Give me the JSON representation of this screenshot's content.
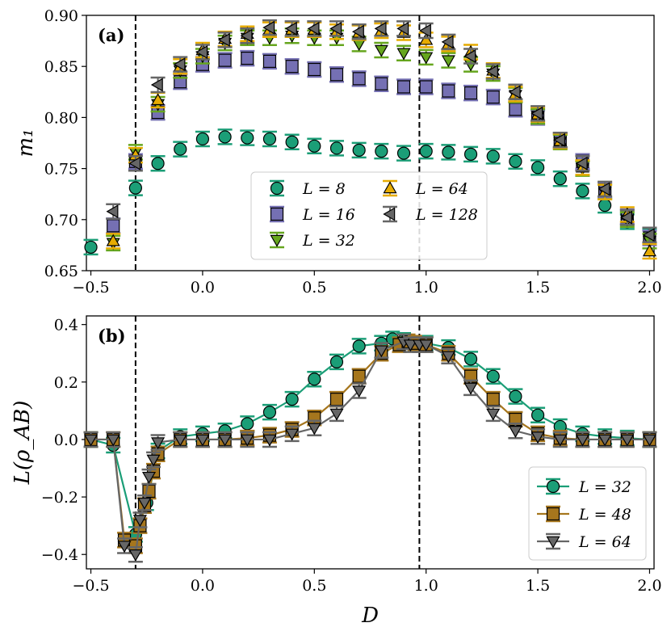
{
  "chart_data": [
    {
      "panel": "(a)",
      "type": "scatter",
      "xlabel": "D",
      "ylabel": "m₁",
      "xlim": [
        -0.52,
        2.02
      ],
      "ylim": [
        0.65,
        0.9
      ],
      "xticks": [
        -0.5,
        0.0,
        0.5,
        1.0,
        1.5,
        2.0
      ],
      "xtick_labels": [
        "−0.5",
        "0.0",
        "0.5",
        "1.0",
        "1.5",
        "2.0"
      ],
      "yticks": [
        0.65,
        0.7,
        0.75,
        0.8,
        0.85,
        0.9
      ],
      "ytick_labels": [
        "0.65",
        "0.70",
        "0.75",
        "0.80",
        "0.85",
        "0.90"
      ],
      "vlines": [
        -0.3,
        0.97
      ],
      "legend_position": "lower-center",
      "legend_columns": 2,
      "series": [
        {
          "name": "L = 8",
          "color": "#1b9e77",
          "marker": "circle",
          "x": [
            -0.5,
            -0.3,
            -0.2,
            -0.1,
            0.0,
            0.1,
            0.2,
            0.3,
            0.4,
            0.5,
            0.6,
            0.7,
            0.8,
            0.9,
            1.0,
            1.1,
            1.2,
            1.3,
            1.4,
            1.5,
            1.6,
            1.7,
            1.8,
            1.9,
            2.0
          ],
          "y": [
            0.673,
            0.731,
            0.755,
            0.769,
            0.779,
            0.781,
            0.78,
            0.779,
            0.776,
            0.772,
            0.77,
            0.768,
            0.767,
            0.765,
            0.767,
            0.766,
            0.764,
            0.762,
            0.757,
            0.751,
            0.74,
            0.728,
            0.714,
            0.698,
            0.684
          ]
        },
        {
          "name": "L = 16",
          "color": "#7570b3",
          "marker": "square",
          "x": [
            -0.4,
            -0.3,
            -0.2,
            -0.1,
            0.0,
            0.1,
            0.2,
            0.3,
            0.4,
            0.5,
            0.6,
            0.7,
            0.8,
            0.9,
            1.0,
            1.1,
            1.2,
            1.3,
            1.4,
            1.5,
            1.6,
            1.7,
            1.8,
            1.9,
            2.0
          ],
          "y": [
            0.694,
            0.757,
            0.805,
            0.835,
            0.852,
            0.856,
            0.858,
            0.855,
            0.85,
            0.847,
            0.842,
            0.838,
            0.833,
            0.83,
            0.83,
            0.826,
            0.824,
            0.82,
            0.808,
            0.8,
            0.778,
            0.757,
            0.729,
            0.703,
            0.682
          ]
        },
        {
          "name": "L = 32",
          "color": "#66a61e",
          "marker": "triangle-down",
          "x": [
            -0.4,
            -0.3,
            -0.2,
            -0.1,
            0.0,
            0.1,
            0.2,
            0.3,
            0.4,
            0.5,
            0.6,
            0.7,
            0.8,
            0.9,
            1.0,
            1.1,
            1.2,
            1.3,
            1.4,
            1.5,
            1.6,
            1.7,
            1.8,
            1.9,
            2.0
          ],
          "y": [
            0.677,
            0.766,
            0.813,
            0.846,
            0.86,
            0.873,
            0.878,
            0.878,
            0.88,
            0.878,
            0.878,
            0.872,
            0.866,
            0.863,
            0.859,
            0.856,
            0.852,
            0.843,
            0.822,
            0.801,
            0.776,
            0.75,
            0.727,
            0.7,
            0.679
          ]
        },
        {
          "name": "L = 64",
          "color": "#e6ab02",
          "marker": "triangle-up",
          "x": [
            -0.4,
            -0.3,
            -0.2,
            -0.1,
            0.0,
            0.1,
            0.2,
            0.3,
            0.4,
            0.5,
            0.6,
            0.7,
            0.8,
            0.9,
            1.0,
            1.1,
            1.2,
            1.3,
            1.4,
            1.5,
            1.6,
            1.7,
            1.8,
            1.9,
            2.0
          ],
          "y": [
            0.679,
            0.763,
            0.817,
            0.85,
            0.866,
            0.877,
            0.882,
            0.886,
            0.886,
            0.886,
            0.884,
            0.883,
            0.885,
            0.883,
            0.876,
            0.872,
            0.864,
            0.846,
            0.823,
            0.803,
            0.777,
            0.751,
            0.727,
            0.705,
            0.669
          ]
        },
        {
          "name": "L = 128",
          "color": "#666666",
          "marker": "triangle-left",
          "x": [
            -0.4,
            -0.3,
            -0.2,
            -0.1,
            0.0,
            0.1,
            0.2,
            0.3,
            0.4,
            0.5,
            0.6,
            0.7,
            0.8,
            0.9,
            1.0,
            1.1,
            1.2,
            1.3,
            1.4,
            1.5,
            1.6,
            1.7,
            1.8,
            1.9,
            2.0
          ],
          "y": [
            0.708,
            0.755,
            0.832,
            0.852,
            0.864,
            0.876,
            0.88,
            0.888,
            0.887,
            0.887,
            0.887,
            0.884,
            0.887,
            0.887,
            0.885,
            0.874,
            0.86,
            0.845,
            0.825,
            0.804,
            0.778,
            0.755,
            0.73,
            0.702,
            0.685
          ]
        }
      ]
    },
    {
      "panel": "(b)",
      "type": "line",
      "xlabel": "D",
      "ylabel": "L(ρ_AB)",
      "xlim": [
        -0.52,
        2.02
      ],
      "ylim": [
        -0.45,
        0.43
      ],
      "xticks": [
        -0.5,
        0.0,
        0.5,
        1.0,
        1.5,
        2.0
      ],
      "xtick_labels": [
        "−0.5",
        "0.0",
        "0.5",
        "1.0",
        "1.5",
        "2.0"
      ],
      "yticks": [
        -0.4,
        -0.2,
        0.0,
        0.2,
        0.4
      ],
      "ytick_labels": [
        "−0.4",
        "−0.2",
        "0.0",
        "0.2",
        "0.4"
      ],
      "vlines": [
        -0.3,
        0.97
      ],
      "legend_position": "lower-right",
      "series": [
        {
          "name": "L = 32",
          "color": "#1b9e77",
          "marker": "circle",
          "x": [
            -0.5,
            -0.4,
            -0.3,
            -0.25,
            -0.2,
            -0.1,
            0.0,
            0.1,
            0.2,
            0.3,
            0.4,
            0.5,
            0.6,
            0.7,
            0.8,
            0.85,
            0.9,
            0.95,
            1.0,
            1.1,
            1.2,
            1.3,
            1.4,
            1.5,
            1.6,
            1.7,
            1.8,
            1.9,
            2.0
          ],
          "y": [
            0.0,
            -0.02,
            -0.33,
            -0.22,
            -0.04,
            0.01,
            0.02,
            0.03,
            0.055,
            0.095,
            0.14,
            0.21,
            0.27,
            0.325,
            0.335,
            0.35,
            0.345,
            0.335,
            0.335,
            0.32,
            0.28,
            0.22,
            0.15,
            0.085,
            0.045,
            0.02,
            0.01,
            0.005,
            0.0
          ]
        },
        {
          "name": "L = 48",
          "color": "#a6761d",
          "marker": "square",
          "x": [
            -0.5,
            -0.4,
            -0.35,
            -0.3,
            -0.28,
            -0.26,
            -0.24,
            -0.22,
            -0.2,
            -0.1,
            0.0,
            0.1,
            0.2,
            0.3,
            0.4,
            0.5,
            0.6,
            0.7,
            0.8,
            0.88,
            0.92,
            0.95,
            1.0,
            1.1,
            1.2,
            1.3,
            1.4,
            1.5,
            1.6,
            1.7,
            1.8,
            1.9,
            2.0
          ],
          "y": [
            0.0,
            0.0,
            -0.35,
            -0.37,
            -0.3,
            -0.23,
            -0.18,
            -0.11,
            -0.05,
            0.0,
            0.0,
            0.0,
            0.005,
            0.015,
            0.035,
            0.075,
            0.14,
            0.22,
            0.3,
            0.33,
            0.34,
            0.335,
            0.33,
            0.3,
            0.22,
            0.14,
            0.07,
            0.02,
            0.005,
            0.0,
            0.0,
            0.0,
            0.0
          ]
        },
        {
          "name": "L = 64",
          "color": "#666666",
          "marker": "triangle-down",
          "x": [
            -0.5,
            -0.4,
            -0.35,
            -0.3,
            -0.28,
            -0.26,
            -0.24,
            -0.22,
            -0.2,
            -0.1,
            0.0,
            0.1,
            0.2,
            0.3,
            0.4,
            0.5,
            0.6,
            0.7,
            0.8,
            0.9,
            0.93,
            0.97,
            1.0,
            1.1,
            1.2,
            1.3,
            1.4,
            1.5,
            1.6,
            1.7,
            1.8,
            1.9,
            2.0
          ],
          "y": [
            0.0,
            0.0,
            -0.37,
            -0.4,
            -0.28,
            -0.22,
            -0.13,
            -0.07,
            -0.01,
            0.0,
            0.0,
            0.0,
            0.0,
            0.0,
            0.02,
            0.04,
            0.09,
            0.17,
            0.31,
            0.34,
            0.33,
            0.33,
            0.33,
            0.29,
            0.18,
            0.09,
            0.03,
            0.01,
            0.0,
            0.0,
            0.0,
            0.0,
            0.0
          ]
        }
      ]
    }
  ]
}
